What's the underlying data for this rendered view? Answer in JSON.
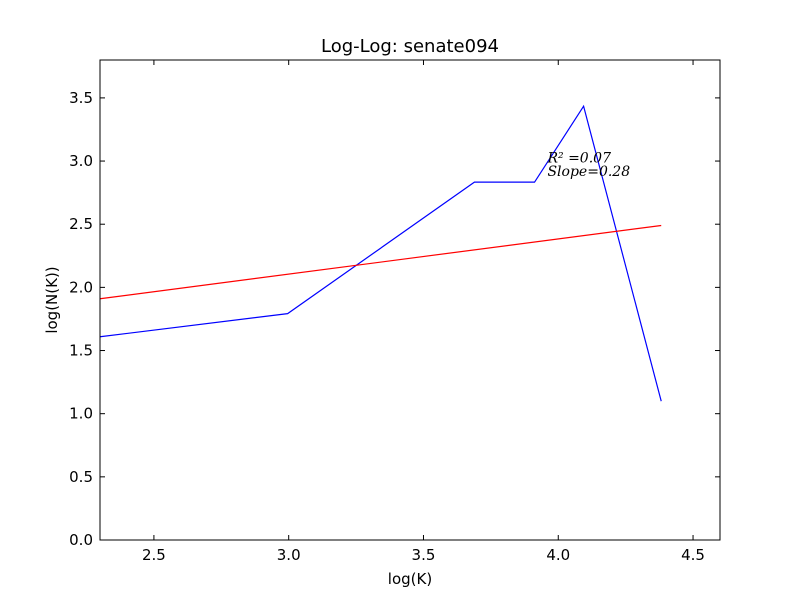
{
  "chart_data": {
    "type": "line",
    "title": "Log-Log: senate094",
    "xlabel": "log(K)",
    "ylabel": "log(N(K))",
    "xlim": [
      2.3,
      4.6
    ],
    "ylim": [
      0.0,
      3.8
    ],
    "xticks": [
      2.5,
      3.0,
      3.5,
      4.0,
      4.5
    ],
    "xtick_labels": [
      "2.5",
      "3.0",
      "3.5",
      "4.0",
      "4.5"
    ],
    "yticks": [
      0.0,
      0.5,
      1.0,
      1.5,
      2.0,
      2.5,
      3.0,
      3.5
    ],
    "ytick_labels": [
      "0.0",
      "0.5",
      "1.0",
      "1.5",
      "2.0",
      "2.5",
      "3.0",
      "3.5"
    ],
    "grid": false,
    "series": [
      {
        "color": "#0000ff",
        "x": [
          2.3,
          2.996,
          3.689,
          3.912,
          4.094,
          4.382
        ],
        "y": [
          1.609,
          1.792,
          2.833,
          2.833,
          3.434,
          1.099
        ]
      },
      {
        "color": "#ff0000",
        "x": [
          2.3,
          4.382
        ],
        "y": [
          1.91,
          2.49
        ]
      }
    ],
    "annotations": [
      {
        "text": "R² =0.07",
        "x": 3.96,
        "y": 2.99
      },
      {
        "text": "Slope=0.28",
        "x": 3.96,
        "y": 2.88
      }
    ]
  }
}
